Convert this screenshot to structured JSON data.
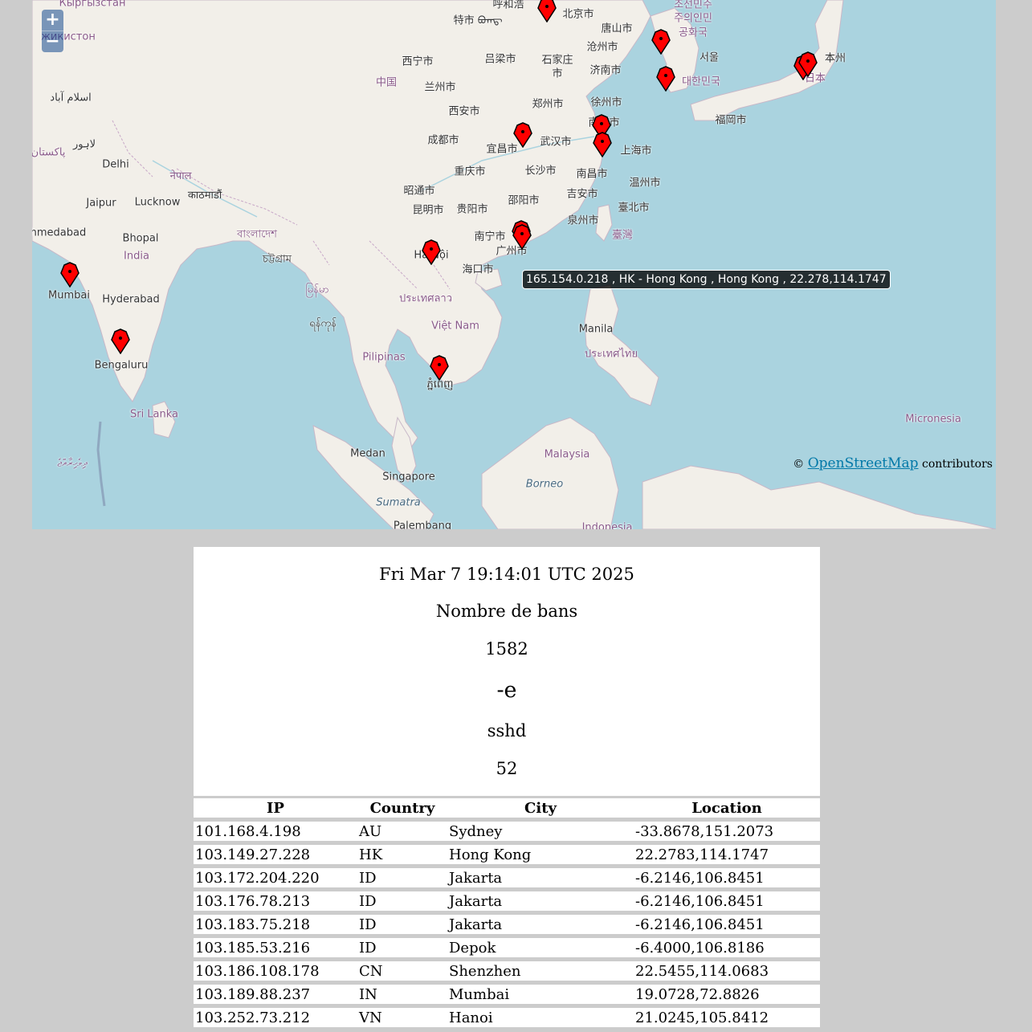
{
  "map": {
    "zoom_in_label": "+",
    "zoom_out_label": "−",
    "tooltip": "165.154.0.218 , HK - Hong Kong , Hong Kong , 22.278,114.1747",
    "attribution_prefix": "©",
    "attribution_link": "OpenStreetMap",
    "attribution_suffix": "contributors",
    "labels": [
      {
        "text": "Кыргызстан",
        "cls": "country"
      },
      {
        "text": "жикистон",
        "cls": "country"
      },
      {
        "text": "呼和浩",
        "cls": ""
      },
      {
        "text": "特市 ᠪᠣᠭᠳ᠋",
        "cls": ""
      },
      {
        "text": "北京市",
        "cls": ""
      },
      {
        "text": "唐山市",
        "cls": ""
      },
      {
        "text": "沧州市",
        "cls": ""
      },
      {
        "text": "조선민주",
        "cls": "country"
      },
      {
        "text": "주의인민",
        "cls": "country"
      },
      {
        "text": "공화국",
        "cls": "country"
      },
      {
        "text": "서울",
        "cls": ""
      },
      {
        "text": "대한민국",
        "cls": "country"
      },
      {
        "text": "本州",
        "cls": ""
      },
      {
        "text": "日本",
        "cls": "country"
      },
      {
        "text": "西宁市",
        "cls": ""
      },
      {
        "text": "吕梁市",
        "cls": ""
      },
      {
        "text": "石家庄",
        "cls": ""
      },
      {
        "text": "市",
        "cls": ""
      },
      {
        "text": "济南市",
        "cls": ""
      },
      {
        "text": "中国",
        "cls": "country"
      },
      {
        "text": "兰州市",
        "cls": ""
      },
      {
        "text": "اسلام آباد",
        "cls": ""
      },
      {
        "text": "郑州市",
        "cls": ""
      },
      {
        "text": "徐州市",
        "cls": ""
      },
      {
        "text": "西安市",
        "cls": ""
      },
      {
        "text": "福岡市",
        "cls": ""
      },
      {
        "text": "南京市",
        "cls": ""
      },
      {
        "text": "لاہور",
        "cls": ""
      },
      {
        "text": "پاکستان",
        "cls": "country"
      },
      {
        "text": "成都市",
        "cls": ""
      },
      {
        "text": "宜昌市",
        "cls": ""
      },
      {
        "text": "武汉市",
        "cls": ""
      },
      {
        "text": "上海市",
        "cls": ""
      },
      {
        "text": "Delhi",
        "cls": ""
      },
      {
        "text": "नेपाल",
        "cls": "country"
      },
      {
        "text": "重庆市",
        "cls": ""
      },
      {
        "text": "长沙市",
        "cls": ""
      },
      {
        "text": "南昌市",
        "cls": ""
      },
      {
        "text": "温州市",
        "cls": ""
      },
      {
        "text": "काठमाडौं",
        "cls": ""
      },
      {
        "text": "昭通市",
        "cls": ""
      },
      {
        "text": "吉安市",
        "cls": ""
      },
      {
        "text": "Jaipur",
        "cls": ""
      },
      {
        "text": "Lucknow",
        "cls": ""
      },
      {
        "text": "邵阳市",
        "cls": ""
      },
      {
        "text": "昆明市",
        "cls": ""
      },
      {
        "text": "贵阳市",
        "cls": ""
      },
      {
        "text": "臺北市",
        "cls": ""
      },
      {
        "text": "泉州市",
        "cls": ""
      },
      {
        "text": "臺灣",
        "cls": "country"
      },
      {
        "text": "Ahmedabad",
        "cls": ""
      },
      {
        "text": "Bhopal",
        "cls": ""
      },
      {
        "text": "বাংলাদেশ",
        "cls": "country"
      },
      {
        "text": "南宁市",
        "cls": ""
      },
      {
        "text": "India",
        "cls": "country"
      },
      {
        "text": "চট্টগ্রাম",
        "cls": ""
      },
      {
        "text": "Hà Nội",
        "cls": ""
      },
      {
        "text": "广州市",
        "cls": ""
      },
      {
        "text": "海口市",
        "cls": ""
      },
      {
        "text": "Mumbai",
        "cls": ""
      },
      {
        "text": "မြန်မာ",
        "cls": "country"
      },
      {
        "text": "Hyderabad",
        "cls": ""
      },
      {
        "text": "ประเทศลาว",
        "cls": "country"
      },
      {
        "text": "ရန်ကုန်",
        "cls": ""
      },
      {
        "text": "Việt Nam",
        "cls": "country"
      },
      {
        "text": "Manila",
        "cls": ""
      },
      {
        "text": "ประเทศไทย",
        "cls": "country"
      },
      {
        "text": "Pilipinas",
        "cls": "country"
      },
      {
        "text": "Bengaluru",
        "cls": ""
      },
      {
        "text": "ភ្នំពេញ",
        "cls": ""
      },
      {
        "text": "Sri Lanka",
        "cls": "country"
      },
      {
        "text": "Micronesia",
        "cls": "country"
      },
      {
        "text": "ދިވެހިރާއްޖެ",
        "cls": "country"
      },
      {
        "text": "Medan",
        "cls": ""
      },
      {
        "text": "Malaysia",
        "cls": "country"
      },
      {
        "text": "Singapore",
        "cls": ""
      },
      {
        "text": "Borneo",
        "cls": "sea"
      },
      {
        "text": "Sumatra",
        "cls": "sea"
      },
      {
        "text": "Palembang",
        "cls": ""
      },
      {
        "text": "Indonesia",
        "cls": "country"
      }
    ]
  },
  "panel": {
    "date": "Fri Mar 7 19:14:01 UTC 2025",
    "bans_label": "Nombre de bans",
    "bans_count": "1582",
    "flag": "-e",
    "service": "sshd",
    "service_count": "52"
  },
  "table": {
    "headers": [
      "IP",
      "Country",
      "City",
      "Location"
    ],
    "rows": [
      [
        "101.168.4.198",
        "AU",
        "Sydney",
        "-33.8678,151.2073"
      ],
      [
        "103.149.27.228",
        "HK",
        "Hong Kong",
        "22.2783,114.1747"
      ],
      [
        "103.172.204.220",
        "ID",
        "Jakarta",
        "-6.2146,106.8451"
      ],
      [
        "103.176.78.213",
        "ID",
        "Jakarta",
        "-6.2146,106.8451"
      ],
      [
        "103.183.75.218",
        "ID",
        "Jakarta",
        "-6.2146,106.8451"
      ],
      [
        "103.185.53.216",
        "ID",
        "Depok",
        "-6.4000,106.8186"
      ],
      [
        "103.186.108.178",
        "CN",
        "Shenzhen",
        "22.5455,114.0683"
      ],
      [
        "103.189.88.237",
        "IN",
        "Mumbai",
        "19.0728,72.8826"
      ],
      [
        "103.252.73.212",
        "VN",
        "Hanoi",
        "21.0245,105.8412"
      ]
    ]
  }
}
